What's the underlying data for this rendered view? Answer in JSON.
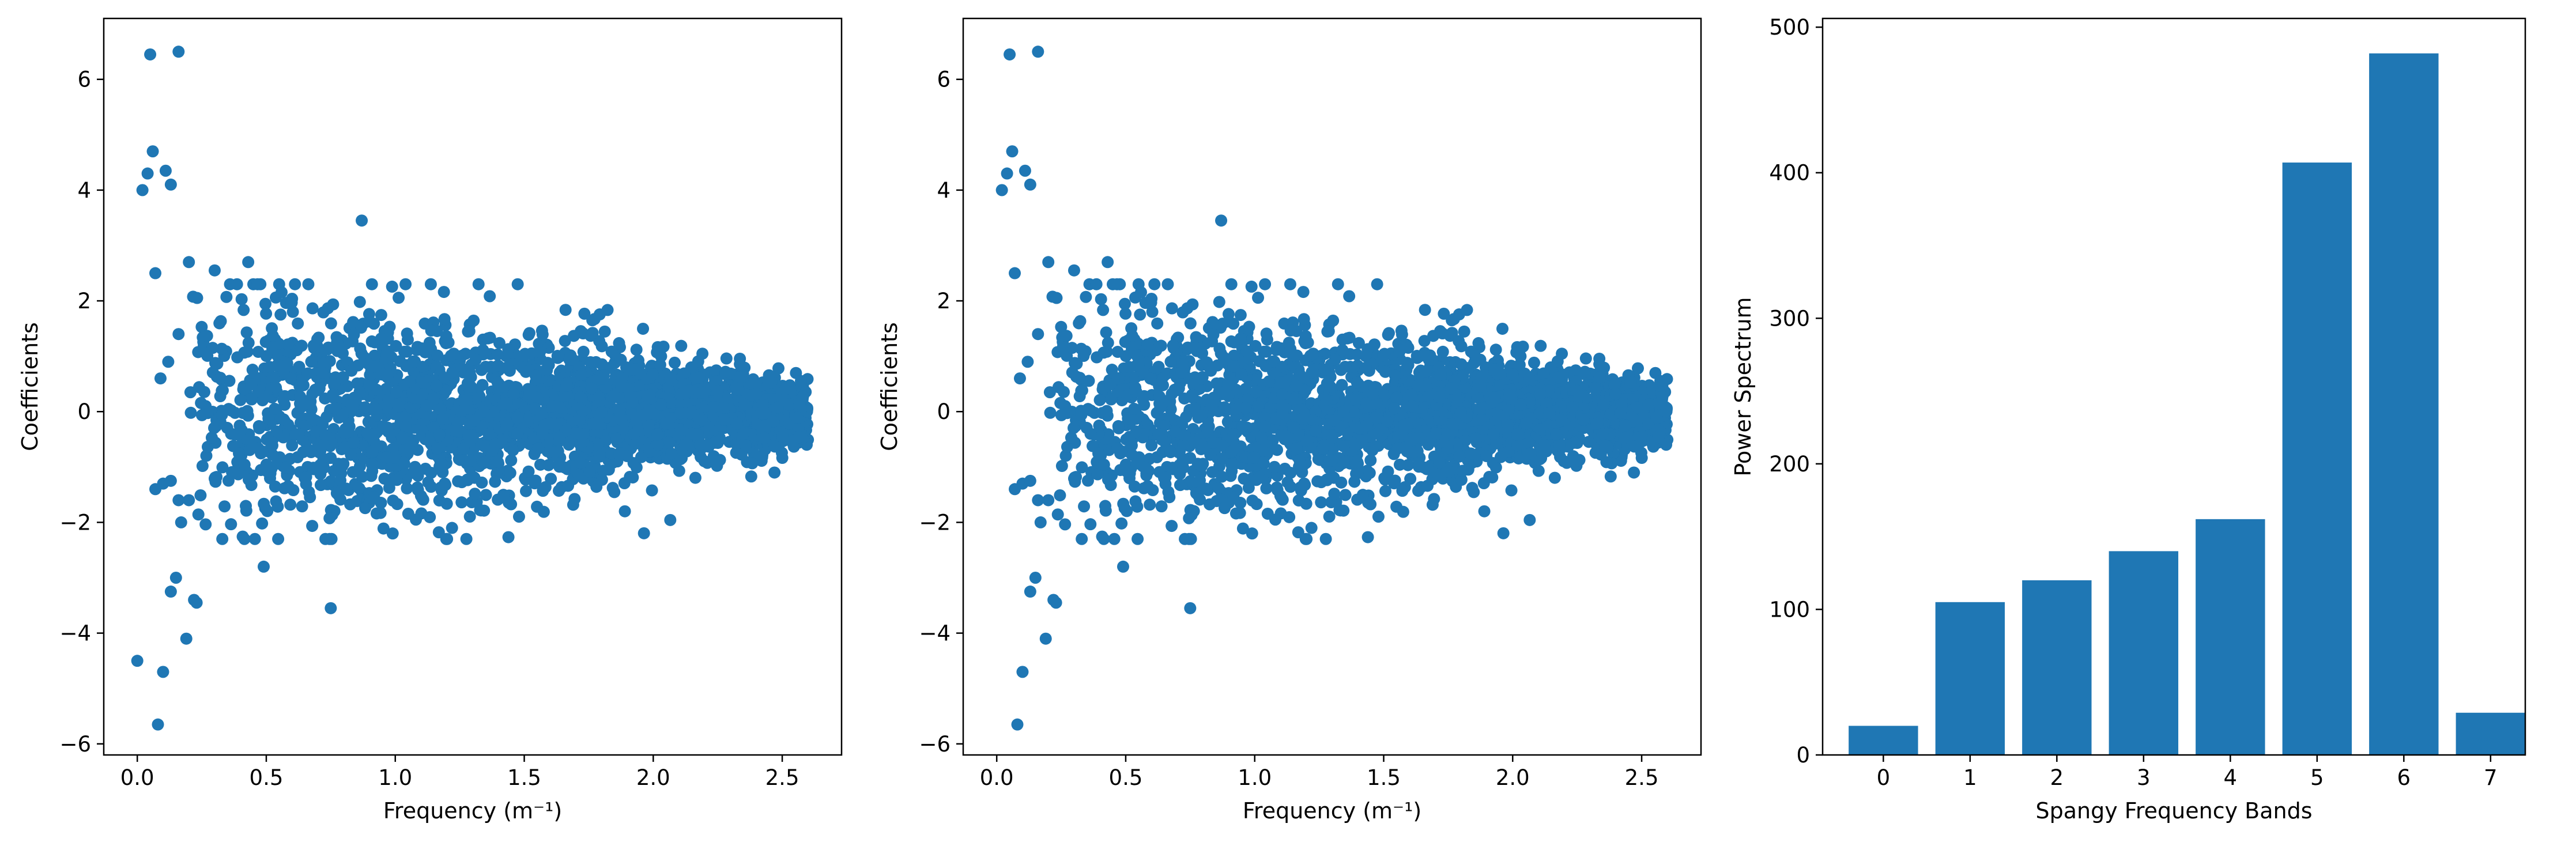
{
  "chart_data": [
    {
      "type": "scatter",
      "xlabel": "Frequency (m⁻¹)",
      "ylabel": "Coefficients",
      "xlim": [
        -0.13,
        2.73
      ],
      "ylim": [
        -6.2,
        7.1
      ],
      "xticks": [
        0.0,
        0.5,
        1.0,
        1.5,
        2.0,
        2.5
      ],
      "xtick_labels": [
        "0.0",
        "0.5",
        "1.0",
        "1.5",
        "2.0",
        "2.5"
      ],
      "yticks": [
        -6,
        -4,
        -2,
        0,
        2,
        4,
        6
      ],
      "ytick_labels": [
        "−6",
        "−4",
        "−2",
        "0",
        "2",
        "4",
        "6"
      ],
      "color": "#1f77b4",
      "points": [
        [
          0.0,
          -4.5
        ],
        [
          0.05,
          6.45
        ],
        [
          0.16,
          6.5
        ],
        [
          0.02,
          4.0
        ],
        [
          0.04,
          4.3
        ],
        [
          0.06,
          4.7
        ],
        [
          0.11,
          4.35
        ],
        [
          0.13,
          4.1
        ],
        [
          0.08,
          -5.65
        ],
        [
          0.1,
          -4.7
        ],
        [
          0.15,
          -3.0
        ],
        [
          0.13,
          -3.25
        ],
        [
          0.19,
          -4.1
        ],
        [
          0.22,
          -3.4
        ],
        [
          0.23,
          -3.45
        ],
        [
          0.07,
          2.5
        ],
        [
          0.2,
          2.7
        ],
        [
          0.3,
          2.55
        ],
        [
          0.43,
          2.7
        ],
        [
          0.87,
          3.45
        ],
        [
          0.49,
          -2.8
        ],
        [
          0.75,
          -3.55
        ],
        [
          0.07,
          -1.4
        ],
        [
          0.1,
          -1.3
        ],
        [
          0.13,
          -1.25
        ],
        [
          0.12,
          0.9
        ],
        [
          0.16,
          1.4
        ],
        [
          0.09,
          0.6
        ],
        [
          0.16,
          -1.6
        ],
        [
          0.17,
          -2.0
        ],
        [
          0.2,
          -1.6
        ],
        [
          0.99,
          -2.2
        ],
        [
          1.08,
          -1.95
        ],
        [
          1.22,
          -2.1
        ],
        [
          1.89,
          -1.8
        ],
        [
          2.47,
          -1.1
        ]
      ],
      "cloud": {
        "x_range": [
          0.2,
          2.6
        ],
        "count": 2600,
        "spread_at_x_0_2": 1.2,
        "spread_at_x_2_6": 0.28
      }
    },
    {
      "type": "scatter",
      "xlabel": "Frequency (m⁻¹)",
      "ylabel": "Coefficients",
      "xlim": [
        -0.13,
        2.73
      ],
      "ylim": [
        -6.2,
        7.1
      ],
      "xticks": [
        0.0,
        0.5,
        1.0,
        1.5,
        2.0,
        2.5
      ],
      "xtick_labels": [
        "0.0",
        "0.5",
        "1.0",
        "1.5",
        "2.0",
        "2.5"
      ],
      "yticks": [
        -6,
        -4,
        -2,
        0,
        2,
        4,
        6
      ],
      "ytick_labels": [
        "−6",
        "−4",
        "−2",
        "0",
        "2",
        "4",
        "6"
      ],
      "color": "#1f77b4",
      "points": [
        [
          0.05,
          6.45
        ],
        [
          0.16,
          6.5
        ],
        [
          0.02,
          4.0
        ],
        [
          0.04,
          4.3
        ],
        [
          0.06,
          4.7
        ],
        [
          0.11,
          4.35
        ],
        [
          0.13,
          4.1
        ],
        [
          0.08,
          -5.65
        ],
        [
          0.1,
          -4.7
        ],
        [
          0.15,
          -3.0
        ],
        [
          0.13,
          -3.25
        ],
        [
          0.19,
          -4.1
        ],
        [
          0.22,
          -3.4
        ],
        [
          0.23,
          -3.45
        ],
        [
          0.07,
          2.5
        ],
        [
          0.2,
          2.7
        ],
        [
          0.3,
          2.55
        ],
        [
          0.43,
          2.7
        ],
        [
          0.87,
          3.45
        ],
        [
          0.49,
          -2.8
        ],
        [
          0.75,
          -3.55
        ],
        [
          0.07,
          -1.4
        ],
        [
          0.1,
          -1.3
        ],
        [
          0.13,
          -1.25
        ],
        [
          0.12,
          0.9
        ],
        [
          0.16,
          1.4
        ],
        [
          0.09,
          0.6
        ],
        [
          0.16,
          -1.6
        ],
        [
          0.17,
          -2.0
        ],
        [
          0.2,
          -1.6
        ],
        [
          0.99,
          -2.2
        ],
        [
          1.08,
          -1.95
        ],
        [
          1.22,
          -2.1
        ],
        [
          1.89,
          -1.8
        ],
        [
          2.47,
          -1.1
        ]
      ],
      "cloud": {
        "x_range": [
          0.2,
          2.6
        ],
        "count": 2600,
        "spread_at_x_0_2": 1.2,
        "spread_at_x_2_6": 0.28
      }
    },
    {
      "type": "bar",
      "xlabel": "Spangy Frequency Bands",
      "ylabel": "Power Spectrum",
      "categories": [
        "0",
        "1",
        "2",
        "3",
        "4",
        "5",
        "6",
        "7"
      ],
      "values": [
        20,
        105,
        120,
        140,
        162,
        407,
        482,
        29
      ],
      "xlim": [
        -0.7,
        7.4
      ],
      "ylim": [
        0,
        506
      ],
      "yticks": [
        0,
        100,
        200,
        300,
        400,
        500
      ],
      "ytick_labels": [
        "0",
        "100",
        "200",
        "300",
        "400",
        "500"
      ],
      "color": "#1f77b4"
    }
  ]
}
